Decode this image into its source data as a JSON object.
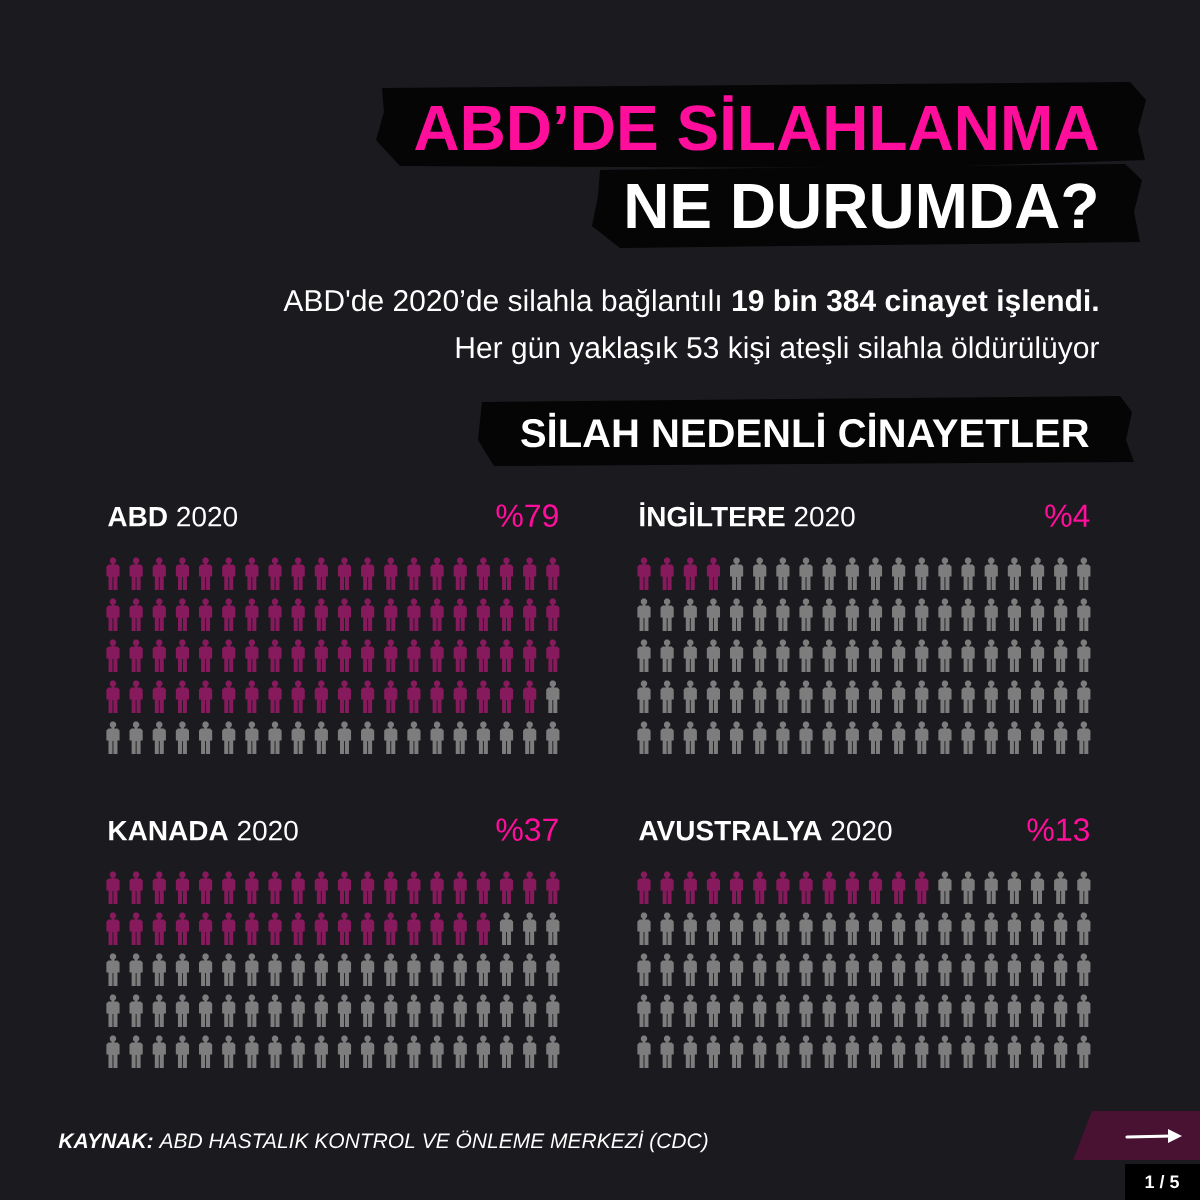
{
  "chart_data": [
    {
      "type": "other",
      "title": "ABD’DE SİLAHLANMA",
      "subtitle": "NE DURUMDA?",
      "annotations": [
        "ABD'de 2020’de silahla bağlantılı **19 bin 384 cinayet işlendi.**",
        "Her gün yaklaşık 53 kişi ateşli silahla öldürülüyor",
        "SİLAH NEDENLİ CİNAYETLER",
        "**KAYNAK:** ABD HASTALIK KONTROL VE ÖNLEME MERKEZİ (CDC)",
        "1 / 5"
      ]
    },
    {
      "type": "other",
      "title": "**ABD** 2020",
      "values": [
        79
      ],
      "value_labels": [
        "%79"
      ],
      "color": "#861a5c"
    },
    {
      "type": "other",
      "title": "**İNGİLTERE** 2020",
      "values": [
        4
      ],
      "value_labels": [
        "%4"
      ],
      "color": "#861a5c"
    },
    {
      "type": "other",
      "title": "**KANADA** 2020",
      "values": [
        37
      ],
      "value_labels": [
        "%37"
      ],
      "color": "#861a5c"
    },
    {
      "type": "other",
      "title": "**AVUSTRALYA** 2020",
      "values": [
        13
      ],
      "value_labels": [
        "%13"
      ],
      "color": "#861a5c"
    }
  ]
}
